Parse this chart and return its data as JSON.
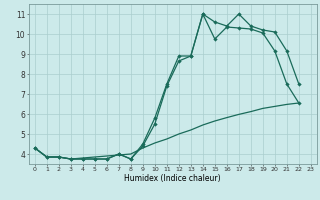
{
  "xlabel": "Humidex (Indice chaleur)",
  "bg_color": "#cceaea",
  "grid_color": "#aacece",
  "line_color": "#1a6b5a",
  "xlim": [
    -0.5,
    23.5
  ],
  "ylim": [
    3.5,
    11.5
  ],
  "xticks": [
    0,
    1,
    2,
    3,
    4,
    5,
    6,
    7,
    8,
    9,
    10,
    11,
    12,
    13,
    14,
    15,
    16,
    17,
    18,
    19,
    20,
    21,
    22,
    23
  ],
  "yticks": [
    4,
    5,
    6,
    7,
    8,
    9,
    10,
    11
  ],
  "line1_x": [
    0,
    1,
    2,
    3,
    4,
    5,
    6,
    7,
    8,
    9,
    10,
    11,
    12,
    13,
    14,
    15,
    16,
    17,
    18,
    19,
    20,
    21,
    22
  ],
  "line1_y": [
    4.3,
    3.85,
    3.85,
    3.75,
    3.75,
    3.75,
    3.75,
    4.0,
    3.75,
    4.4,
    5.5,
    7.4,
    8.65,
    8.9,
    11.0,
    9.75,
    10.35,
    10.3,
    10.25,
    10.05,
    9.15,
    7.5,
    6.55
  ],
  "line2_x": [
    0,
    1,
    2,
    3,
    4,
    5,
    6,
    7,
    8,
    9,
    10,
    11,
    12,
    13,
    14,
    15,
    16,
    17,
    18,
    19,
    20,
    21,
    22,
    23
  ],
  "line2_y": [
    4.3,
    3.85,
    3.85,
    3.75,
    3.75,
    3.75,
    3.75,
    4.0,
    3.75,
    4.5,
    5.8,
    7.5,
    8.9,
    8.9,
    11.0,
    10.6,
    10.4,
    11.0,
    10.4,
    10.2,
    10.1,
    9.15,
    7.5,
    null
  ],
  "line3_x": [
    0,
    1,
    2,
    3,
    4,
    5,
    6,
    7,
    8,
    9,
    10,
    11,
    12,
    13,
    14,
    15,
    16,
    17,
    18,
    19,
    20,
    21,
    22
  ],
  "line3_y": [
    4.3,
    3.85,
    3.85,
    3.75,
    3.8,
    3.85,
    3.9,
    3.95,
    4.0,
    4.3,
    4.55,
    4.75,
    5.0,
    5.2,
    5.45,
    5.65,
    5.82,
    5.98,
    6.12,
    6.28,
    6.38,
    6.48,
    6.55
  ]
}
